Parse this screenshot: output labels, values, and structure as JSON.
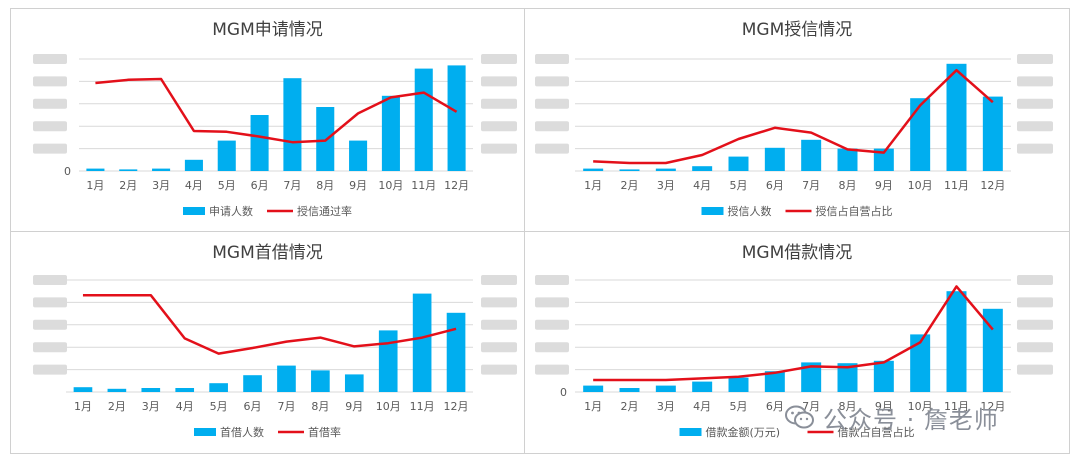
{
  "colors": {
    "bar": "#00aeef",
    "line": "#e3101a",
    "grid": "#d9d9d9",
    "text": "#595959",
    "title": "#404040"
  },
  "watermark": {
    "icon": "wechat-icon",
    "text": "公众号 · 詹老师"
  },
  "chart_data": [
    {
      "type": "bar+line",
      "title": "MGM申请情况",
      "categories": [
        "1月",
        "2月",
        "3月",
        "4月",
        "5月",
        "6月",
        "7月",
        "8月",
        "9月",
        "10月",
        "11月",
        "12月"
      ],
      "series": [
        {
          "name": "申请人数",
          "type": "bar",
          "axis": "left",
          "values": [
            1.5,
            1,
            1.5,
            7,
            19,
            35,
            58,
            40,
            19,
            47,
            64,
            66
          ]
        },
        {
          "name": "授信通过率",
          "type": "line",
          "axis": "right",
          "values": [
            55,
            57,
            57.5,
            25,
            24.5,
            21.5,
            18,
            19,
            36,
            46,
            49,
            37
          ]
        }
      ],
      "y_left": {
        "min": 0,
        "max": 70,
        "visible_tick": "0"
      },
      "y_right": {
        "min": 0,
        "max": 70
      },
      "legend_position": "bottom"
    },
    {
      "type": "bar+line",
      "title": "MGM授信情况",
      "categories": [
        "1月",
        "2月",
        "3月",
        "4月",
        "5月",
        "6月",
        "7月",
        "8月",
        "9月",
        "10月",
        "11月",
        "12月"
      ],
      "series": [
        {
          "name": "授信人数",
          "type": "bar",
          "axis": "left",
          "values": [
            1.5,
            1,
            1.5,
            3,
            9,
            14.5,
            19.5,
            14,
            14,
            45.5,
            67,
            46.5
          ]
        },
        {
          "name": "授信占自营占比",
          "type": "line",
          "axis": "right",
          "values": [
            6,
            5,
            5,
            10,
            20,
            27,
            24,
            13.5,
            11.5,
            41,
            63,
            43
          ]
        }
      ],
      "y_left": {
        "min": 0,
        "max": 70
      },
      "y_right": {
        "min": 0,
        "max": 70
      },
      "legend_position": "bottom"
    },
    {
      "type": "bar+line",
      "title": "MGM首借情况",
      "categories": [
        "1月",
        "2月",
        "3月",
        "4月",
        "5月",
        "6月",
        "7月",
        "8月",
        "9月",
        "10月",
        "11月",
        "12月"
      ],
      "series": [
        {
          "name": "首借人数",
          "type": "bar",
          "axis": "left",
          "values": [
            3,
            2,
            2.5,
            2.5,
            5.5,
            10.5,
            16.5,
            13.5,
            11,
            38.5,
            61.5,
            49.5
          ]
        },
        {
          "name": "首借率",
          "type": "line",
          "axis": "right",
          "values": [
            60.5,
            60.5,
            60.5,
            33.5,
            24,
            27.5,
            31.5,
            34,
            28.5,
            30.5,
            34,
            39.5
          ]
        }
      ],
      "y_left": {
        "min": 0,
        "max": 70
      },
      "y_right": {
        "min": 0,
        "max": 70
      },
      "legend_position": "bottom"
    },
    {
      "type": "bar+line",
      "title": "MGM借款情况",
      "categories": [
        "1月",
        "2月",
        "3月",
        "4月",
        "5月",
        "6月",
        "7月",
        "8月",
        "9月",
        "10月",
        "11月",
        "12月"
      ],
      "series": [
        {
          "name": "借款金额(万元)",
          "type": "bar",
          "axis": "left",
          "values": [
            4,
            2.5,
            4,
            6.5,
            9,
            13,
            18.5,
            18,
            19.5,
            36,
            63,
            52
          ]
        },
        {
          "name": "借款占自营占比",
          "type": "line",
          "axis": "right",
          "values": [
            7.5,
            7.5,
            7.5,
            8.5,
            9.5,
            12,
            16,
            15.5,
            18.5,
            31,
            66,
            39
          ]
        }
      ],
      "y_left": {
        "min": 0,
        "max": 70,
        "visible_tick": "0"
      },
      "y_right": {
        "min": 0,
        "max": 70
      },
      "legend_position": "bottom"
    }
  ]
}
